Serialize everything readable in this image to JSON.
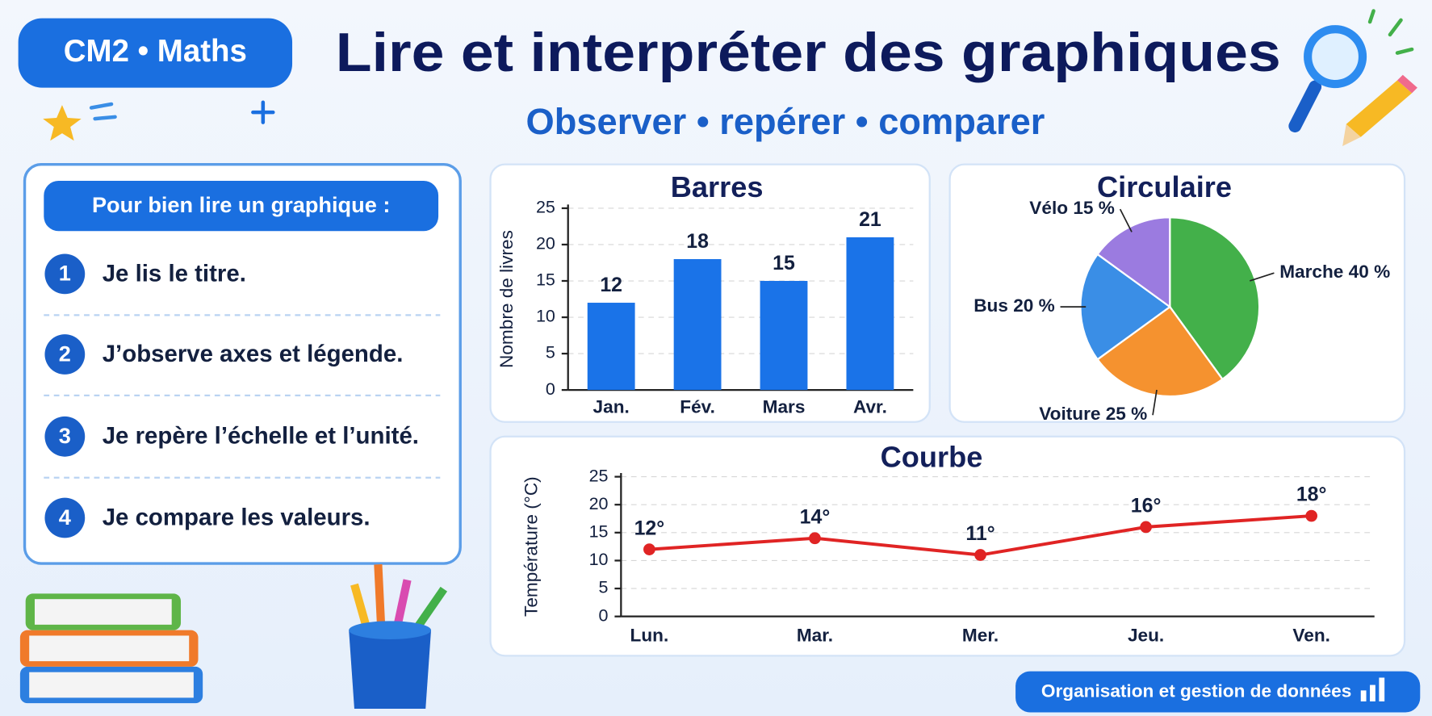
{
  "header": {
    "badge": "CM2 • Maths",
    "title": "Lire et interpréter des graphiques",
    "subtitle": "Observer • repérer • comparer"
  },
  "guide": {
    "heading": "Pour bien lire un graphique :",
    "steps": [
      {
        "number": 1,
        "text": "Je lis le titre."
      },
      {
        "number": 2,
        "text": "J’observe axes et légende."
      },
      {
        "number": 3,
        "text": "Je repère l’échelle et l’unité."
      },
      {
        "number": 4,
        "text": "Je compare les valeurs."
      }
    ]
  },
  "chart_data": [
    {
      "type": "bar",
      "title": "Barres",
      "y_label": "Nombre de livres",
      "categories": [
        "Jan.",
        "Fév.",
        "Mars",
        "Avr."
      ],
      "values": [
        12,
        18,
        15,
        21
      ],
      "color": "#1a73e8",
      "ylim": [
        0,
        25
      ],
      "yticks": [
        0,
        5,
        10,
        15,
        20,
        25
      ],
      "grid": true
    },
    {
      "type": "pie",
      "title": "Circulaire",
      "values": [
        40,
        25,
        20,
        15
      ],
      "value_labels": [
        "Marche 40 %",
        "Voiture 25 %",
        "Bus 20 %",
        "Vélo 15 %"
      ],
      "colors": [
        "#43b04a",
        "#f5922f",
        "#3a8ee6",
        "#9b7be0"
      ]
    },
    {
      "type": "line",
      "title": "Courbe",
      "y_label": "Température (°C)",
      "categories": [
        "Lun.",
        "Mar.",
        "Mer.",
        "Jeu.",
        "Ven."
      ],
      "values": [
        12,
        14,
        11,
        16,
        18
      ],
      "value_labels": [
        "12°",
        "14°",
        "11°",
        "16°",
        "18°"
      ],
      "color": "#e02424",
      "ylim": [
        0,
        25
      ],
      "yticks": [
        0,
        5,
        10,
        15,
        20,
        25
      ],
      "grid": true
    }
  ],
  "footer": {
    "label": "Organisation et gestion de données"
  }
}
